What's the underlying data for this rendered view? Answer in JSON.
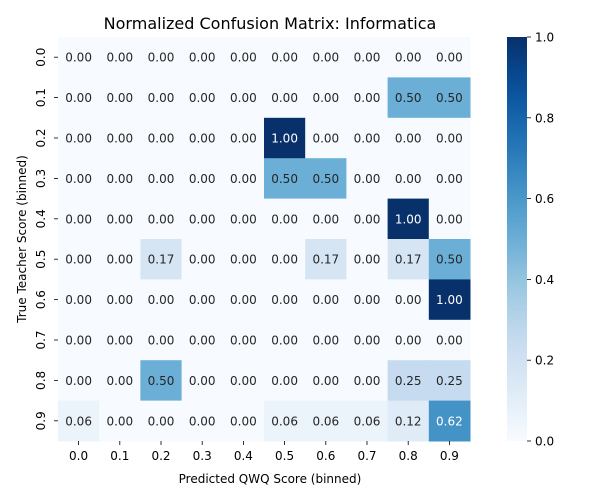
{
  "chart_data": {
    "type": "heatmap",
    "title": "Normalized Confusion Matrix: Informatica",
    "xlabel": "Predicted QWQ Score (binned)",
    "ylabel": "True Teacher Score (binned)",
    "x_categories": [
      "0.0",
      "0.1",
      "0.2",
      "0.3",
      "0.4",
      "0.5",
      "0.6",
      "0.7",
      "0.8",
      "0.9"
    ],
    "y_categories": [
      "0.0",
      "0.1",
      "0.2",
      "0.3",
      "0.4",
      "0.5",
      "0.6",
      "0.7",
      "0.8",
      "0.9"
    ],
    "values": [
      [
        0.0,
        0.0,
        0.0,
        0.0,
        0.0,
        0.0,
        0.0,
        0.0,
        0.0,
        0.0
      ],
      [
        0.0,
        0.0,
        0.0,
        0.0,
        0.0,
        0.0,
        0.0,
        0.0,
        0.5,
        0.5
      ],
      [
        0.0,
        0.0,
        0.0,
        0.0,
        0.0,
        1.0,
        0.0,
        0.0,
        0.0,
        0.0
      ],
      [
        0.0,
        0.0,
        0.0,
        0.0,
        0.0,
        0.5,
        0.5,
        0.0,
        0.0,
        0.0
      ],
      [
        0.0,
        0.0,
        0.0,
        0.0,
        0.0,
        0.0,
        0.0,
        0.0,
        1.0,
        0.0
      ],
      [
        0.0,
        0.0,
        0.17,
        0.0,
        0.0,
        0.0,
        0.17,
        0.0,
        0.17,
        0.5
      ],
      [
        0.0,
        0.0,
        0.0,
        0.0,
        0.0,
        0.0,
        0.0,
        0.0,
        0.0,
        1.0
      ],
      [
        0.0,
        0.0,
        0.0,
        0.0,
        0.0,
        0.0,
        0.0,
        0.0,
        0.0,
        0.0
      ],
      [
        0.0,
        0.0,
        0.5,
        0.0,
        0.0,
        0.0,
        0.0,
        0.0,
        0.25,
        0.25
      ],
      [
        0.06,
        0.0,
        0.0,
        0.0,
        0.0,
        0.06,
        0.06,
        0.06,
        0.12,
        0.62
      ]
    ],
    "value_range": [
      0.0,
      1.0
    ],
    "colormap": "Blues",
    "colorbar_ticks": [
      "0.0",
      "0.2",
      "0.4",
      "0.6",
      "0.8",
      "1.0"
    ]
  }
}
